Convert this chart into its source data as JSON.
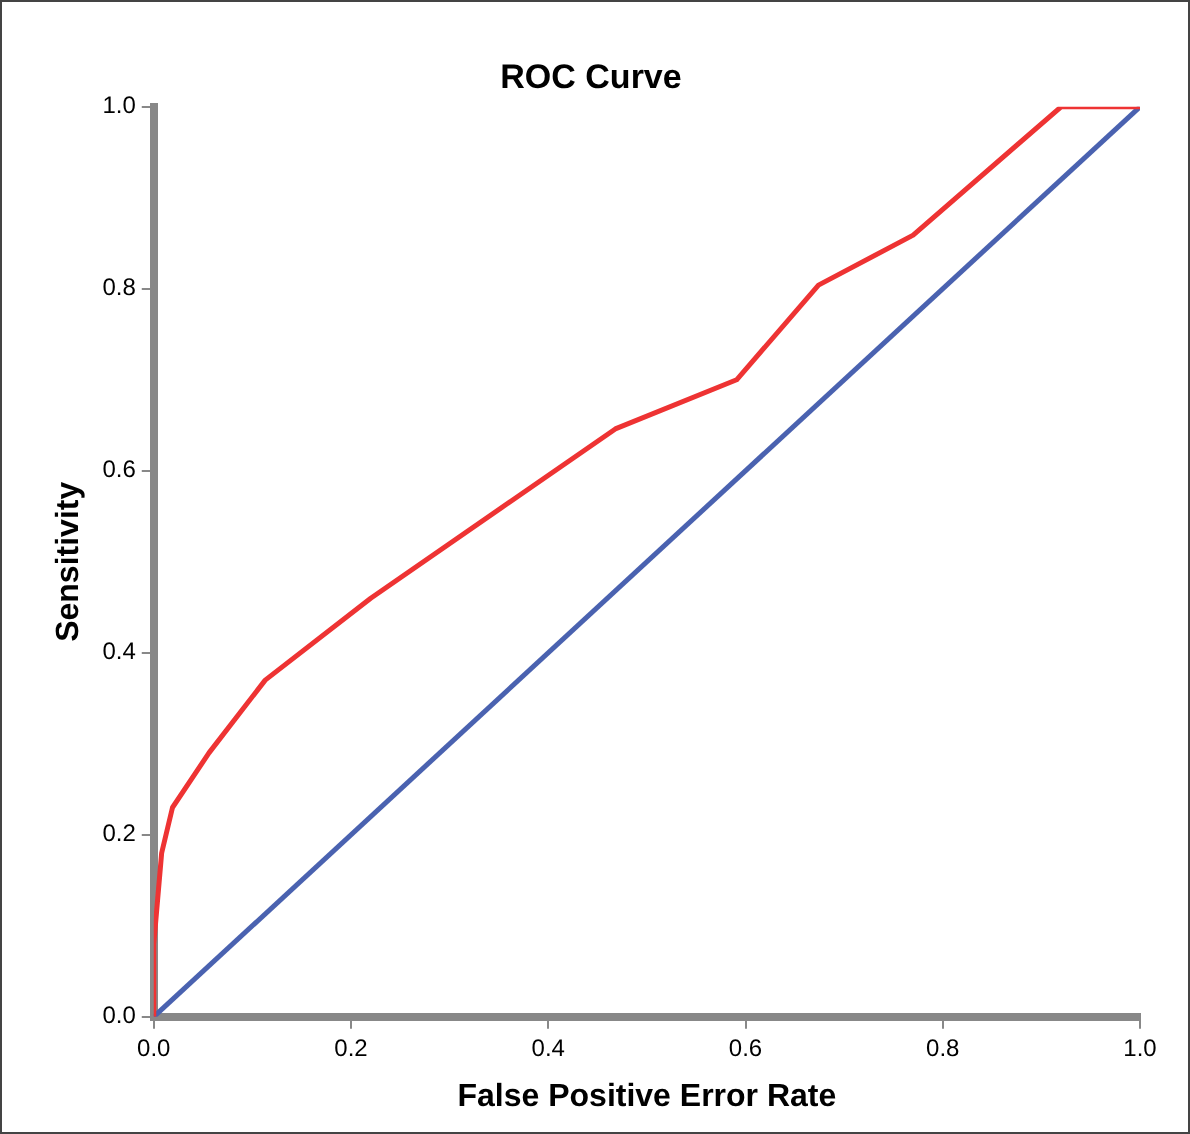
{
  "chart_data": {
    "type": "line",
    "title": "ROC Curve",
    "xlabel": "False Positive Error Rate",
    "ylabel": "Sensitivity",
    "xlim": [
      0,
      1
    ],
    "ylim": [
      0,
      1
    ],
    "xticks": [
      {
        "value": 0,
        "label": "0.0"
      },
      0.2,
      0.4,
      0.6,
      0.8,
      {
        "value": 1,
        "label": "1.0"
      }
    ],
    "yticks": [
      {
        "value": 0,
        "label": "0.0"
      },
      0.2,
      0.4,
      0.6,
      0.8,
      {
        "value": 1,
        "label": "1.0"
      }
    ],
    "grid": false,
    "legend": false,
    "marker": "none",
    "line_style": "solid",
    "series": [
      {
        "color": "#ee3333",
        "x": [
          0,
          0.0,
          0.008,
          0.019,
          0.056,
          0.113,
          0.22,
          0.468,
          0.591,
          0.674,
          0.77,
          0.92,
          1
        ],
        "values": [
          0,
          0.08,
          0.18,
          0.23,
          0.29,
          0.37,
          0.46,
          0.646,
          0.7,
          0.804,
          0.859,
          1,
          1
        ]
      },
      {
        "color": "#4a62b0",
        "x": [
          0,
          1
        ],
        "values": [
          0,
          1
        ]
      }
    ]
  }
}
